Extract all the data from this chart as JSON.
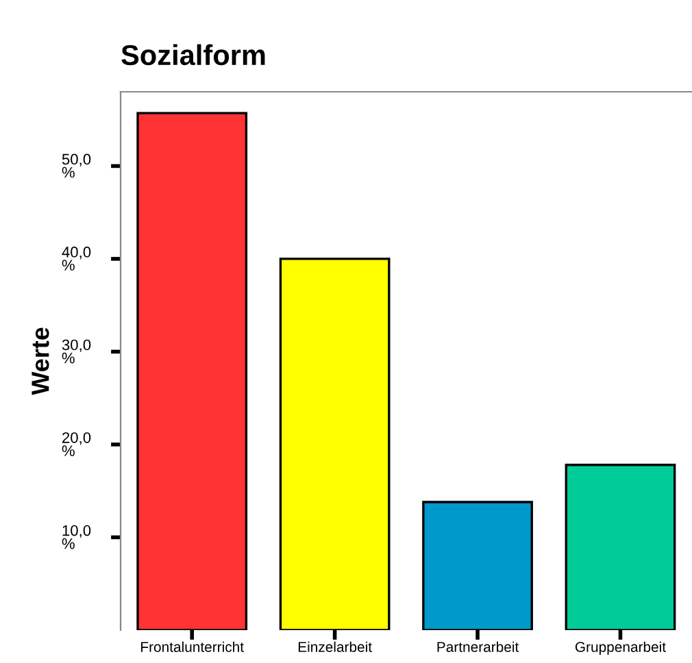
{
  "chart_data": {
    "type": "bar",
    "title": "Sozialform",
    "ylabel": "Werte",
    "categories": [
      "Frontalunterricht",
      "Einzelarbeit",
      "Partnerarbeit",
      "Gruppenarbeit"
    ],
    "values": [
      55.7,
      40.0,
      13.8,
      17.8
    ],
    "colors": [
      "#ff3333",
      "#ffff00",
      "#0099cc",
      "#00cc99"
    ],
    "ylim": [
      0,
      58
    ],
    "yticks": [
      {
        "value": 10,
        "label": "10,0\n%"
      },
      {
        "value": 20,
        "label": "20,0\n%"
      },
      {
        "value": 30,
        "label": "30,0\n%"
      },
      {
        "value": 40,
        "label": "40,0\n%"
      },
      {
        "value": 50,
        "label": "50,0\n%"
      }
    ],
    "grid": false,
    "legend": false
  }
}
